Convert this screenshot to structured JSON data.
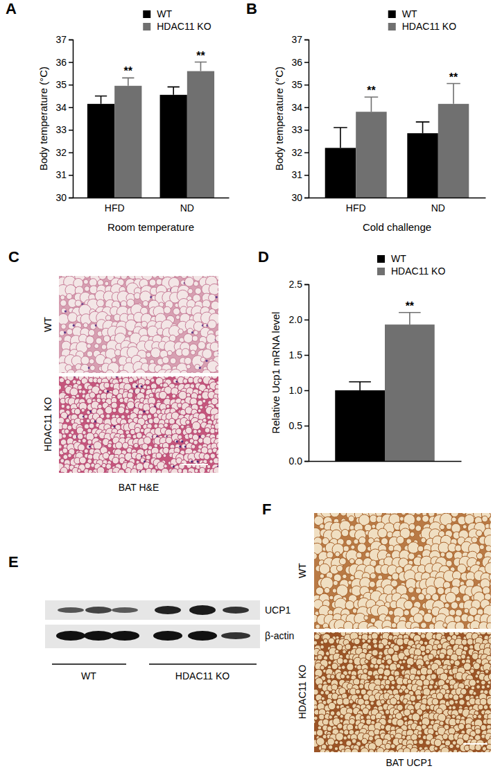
{
  "chart_data": [
    {
      "type": "bar",
      "title": "A",
      "xlabel": "Room temperature",
      "ylabel": "Body temperature (°C)",
      "categories": [
        "HFD",
        "ND"
      ],
      "series": [
        {
          "name": "WT",
          "color": "#000000",
          "values": [
            34.15,
            34.55
          ],
          "errors": [
            0.35,
            0.35
          ]
        },
        {
          "name": "HDAC11 KO",
          "color": "#707070",
          "values": [
            34.95,
            35.6
          ],
          "errors": [
            0.35,
            0.4
          ],
          "annotations": [
            "**",
            "**"
          ]
        }
      ],
      "ylim": [
        30,
        37
      ],
      "yticks": [
        30,
        31,
        32,
        33,
        34,
        35,
        36,
        37
      ],
      "legend": "upper right"
    },
    {
      "type": "bar",
      "title": "B",
      "xlabel": "Cold challenge",
      "ylabel": "Body temperature (°C)",
      "categories": [
        "HFD",
        "ND"
      ],
      "series": [
        {
          "name": "WT",
          "color": "#000000",
          "values": [
            32.2,
            32.85
          ],
          "errors": [
            0.9,
            0.5
          ]
        },
        {
          "name": "HDAC11 KO",
          "color": "#707070",
          "values": [
            33.8,
            34.15
          ],
          "errors": [
            0.65,
            0.9
          ],
          "annotations": [
            "**",
            "**"
          ]
        }
      ],
      "ylim": [
        30,
        37
      ],
      "yticks": [
        30,
        31,
        32,
        33,
        34,
        35,
        36,
        37
      ],
      "legend": "upper right"
    },
    {
      "type": "bar",
      "title": "D",
      "ylabel": "Relative Ucp1 mRNA level",
      "categories": [
        null
      ],
      "series": [
        {
          "name": "WT",
          "color": "#000000",
          "values": [
            1.0
          ],
          "errors": [
            0.12
          ]
        },
        {
          "name": "HDAC11 KO",
          "color": "#707070",
          "values": [
            1.93
          ],
          "errors": [
            0.17
          ],
          "annotations": [
            "**"
          ]
        }
      ],
      "ylim": [
        0,
        2.5
      ],
      "yticks": [
        {
          "value": 0,
          "label": "0.0"
        },
        0.5,
        {
          "value": 1,
          "label": "1.0"
        },
        1.5,
        {
          "value": 2,
          "label": "2.0"
        },
        2.5
      ],
      "legend": "upper right"
    }
  ],
  "image_panels": [
    {
      "panel": "C",
      "rows": [
        "WT",
        "HDAC11 KO"
      ],
      "caption": "BAT H&E"
    },
    {
      "panel": "E",
      "bands": [
        "UCP1",
        "β-actin"
      ],
      "groups": [
        "WT",
        "HDAC11 KO"
      ]
    },
    {
      "panel": "F",
      "rows": [
        "WT",
        "HDAC11 KO"
      ],
      "caption": "BAT UCP1"
    }
  ]
}
